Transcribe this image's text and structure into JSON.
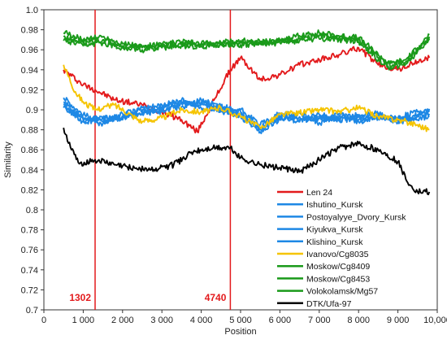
{
  "chart_data": {
    "type": "line",
    "xlabel": "Position",
    "ylabel": "Similarity",
    "xlim": [
      0,
      10000
    ],
    "ylim": [
      0.7,
      1.0
    ],
    "x_ticks": [
      0,
      1000,
      2000,
      3000,
      4000,
      5000,
      6000,
      7000,
      8000,
      9000,
      10000
    ],
    "x_tick_labels": [
      "0",
      "1 000",
      "2 000",
      "3 000",
      "4 000",
      "5 000",
      "6 000",
      "7 000",
      "8 000",
      "9 000",
      "10,000"
    ],
    "y_ticks": [
      0.7,
      0.72,
      0.74,
      0.76,
      0.78,
      0.8,
      0.82,
      0.84,
      0.86,
      0.88,
      0.9,
      0.92,
      0.94,
      0.96,
      0.98,
      1.0
    ],
    "y_tick_labels": [
      "0.7",
      "0.72",
      "0.74",
      "0.76",
      "0.78",
      "0.8",
      "0.82",
      "0.84",
      "0.86",
      "0.88",
      "0.9",
      "0.92",
      "0.94",
      "0.96",
      "0.98",
      "1.0"
    ],
    "grid": false,
    "legend_position": "bottom-right",
    "vertical_markers": [
      {
        "x": 1302,
        "label": "1302",
        "color": "#e31a1c"
      },
      {
        "x": 4740,
        "label": "4740",
        "color": "#e31a1c"
      }
    ],
    "series": [
      {
        "name": "Len 24",
        "color": "#e31a1c",
        "x": [
          500,
          1000,
          1302,
          1800,
          2500,
          3000,
          3500,
          3900,
          4400,
          4740,
          5000,
          5500,
          6000,
          6500,
          7000,
          7500,
          8000,
          8500,
          9000,
          9500,
          9800
        ],
        "y": [
          0.94,
          0.925,
          0.92,
          0.91,
          0.905,
          0.898,
          0.89,
          0.878,
          0.915,
          0.94,
          0.952,
          0.93,
          0.935,
          0.945,
          0.95,
          0.955,
          0.962,
          0.945,
          0.94,
          0.948,
          0.952
        ]
      },
      {
        "name": "Ishutino_Kursk",
        "color": "#1e88e5",
        "x": [
          500,
          1000,
          1500,
          2000,
          2500,
          3000,
          3500,
          4000,
          4500,
          5000,
          5500,
          6000,
          6500,
          7000,
          7500,
          8000,
          8500,
          9000,
          9500,
          9800
        ],
        "y": [
          0.912,
          0.895,
          0.888,
          0.894,
          0.902,
          0.905,
          0.908,
          0.902,
          0.9,
          0.895,
          0.878,
          0.89,
          0.893,
          0.891,
          0.896,
          0.89,
          0.894,
          0.889,
          0.895,
          0.898
        ]
      },
      {
        "name": "Postoyalyye_Dvory_Kursk",
        "color": "#1e88e5",
        "x": [
          500,
          1000,
          1500,
          2000,
          2500,
          3000,
          3500,
          4000,
          4500,
          5000,
          5500,
          6000,
          6500,
          7000,
          7500,
          8000,
          8500,
          9000,
          9500,
          9800
        ],
        "y": [
          0.908,
          0.89,
          0.892,
          0.89,
          0.898,
          0.902,
          0.91,
          0.905,
          0.904,
          0.898,
          0.882,
          0.894,
          0.897,
          0.887,
          0.893,
          0.893,
          0.891,
          0.892,
          0.898,
          0.901
        ]
      },
      {
        "name": "Kiyukva_Kursk",
        "color": "#1e88e5",
        "x": [
          500,
          1000,
          1500,
          2000,
          2500,
          3000,
          3500,
          4000,
          4500,
          5000,
          5500,
          6000,
          6500,
          7000,
          7500,
          8000,
          8500,
          9000,
          9500,
          9800
        ],
        "y": [
          0.905,
          0.892,
          0.886,
          0.896,
          0.9,
          0.898,
          0.906,
          0.908,
          0.898,
          0.9,
          0.885,
          0.896,
          0.89,
          0.893,
          0.889,
          0.895,
          0.896,
          0.887,
          0.893,
          0.896
        ]
      },
      {
        "name": "Klishino_Kursk",
        "color": "#1e88e5",
        "x": [
          500,
          1000,
          1500,
          2000,
          2500,
          3000,
          3500,
          4000,
          4500,
          5000,
          5500,
          6000,
          6500,
          7000,
          7500,
          8000,
          8500,
          9000,
          9500,
          9800
        ],
        "y": [
          0.902,
          0.888,
          0.891,
          0.893,
          0.896,
          0.9,
          0.903,
          0.91,
          0.902,
          0.893,
          0.88,
          0.892,
          0.888,
          0.895,
          0.891,
          0.888,
          0.893,
          0.891,
          0.89,
          0.894
        ]
      },
      {
        "name": "Ivanovo/Cg8035",
        "color": "#f5c400",
        "x": [
          500,
          800,
          1000,
          1302,
          1800,
          2500,
          3000,
          3500,
          4000,
          4500,
          5000,
          5500,
          6000,
          6500,
          7000,
          7500,
          8000,
          8500,
          9000,
          9500,
          9800
        ],
        "y": [
          0.945,
          0.918,
          0.908,
          0.9,
          0.905,
          0.888,
          0.892,
          0.9,
          0.898,
          0.902,
          0.893,
          0.882,
          0.895,
          0.897,
          0.9,
          0.898,
          0.902,
          0.893,
          0.89,
          0.885,
          0.88
        ]
      },
      {
        "name": "Moskow/Cg8409",
        "color": "#1a9a1a",
        "x": [
          500,
          1000,
          1500,
          2000,
          2500,
          3000,
          3500,
          4000,
          4500,
          5000,
          5500,
          6000,
          6500,
          7000,
          7500,
          8000,
          8500,
          8800,
          9200,
          9600,
          9800
        ],
        "y": [
          0.977,
          0.97,
          0.973,
          0.966,
          0.963,
          0.965,
          0.968,
          0.966,
          0.967,
          0.969,
          0.968,
          0.97,
          0.974,
          0.977,
          0.974,
          0.972,
          0.955,
          0.946,
          0.95,
          0.966,
          0.975
        ]
      },
      {
        "name": "Moskow/Cg8453",
        "color": "#1a9a1a",
        "x": [
          500,
          1000,
          1500,
          2000,
          2500,
          3000,
          3500,
          4000,
          4500,
          5000,
          5500,
          6000,
          6500,
          7000,
          7500,
          8000,
          8500,
          8800,
          9200,
          9600,
          9800
        ],
        "y": [
          0.973,
          0.967,
          0.97,
          0.964,
          0.962,
          0.963,
          0.966,
          0.965,
          0.965,
          0.967,
          0.967,
          0.968,
          0.971,
          0.974,
          0.972,
          0.97,
          0.952,
          0.944,
          0.948,
          0.964,
          0.973
        ]
      },
      {
        "name": "Volokolamsk/Mg57",
        "color": "#1a9a1a",
        "x": [
          500,
          1000,
          1500,
          2000,
          2500,
          3000,
          3500,
          4000,
          4500,
          5000,
          5500,
          6000,
          6500,
          7000,
          7500,
          8000,
          8500,
          8800,
          9200,
          9600,
          9800
        ],
        "y": [
          0.969,
          0.964,
          0.967,
          0.962,
          0.96,
          0.962,
          0.964,
          0.963,
          0.966,
          0.965,
          0.966,
          0.967,
          0.969,
          0.971,
          0.97,
          0.968,
          0.95,
          0.942,
          0.946,
          0.962,
          0.971
        ]
      },
      {
        "name": "DTK/Ufa-97",
        "color": "#000000",
        "x": [
          500,
          700,
          900,
          1302,
          1800,
          2300,
          2800,
          3300,
          3800,
          4300,
          4740,
          5000,
          5500,
          6000,
          6500,
          7000,
          7500,
          8000,
          8500,
          9000,
          9300,
          9500,
          9800
        ],
        "y": [
          0.882,
          0.86,
          0.846,
          0.85,
          0.845,
          0.842,
          0.84,
          0.845,
          0.858,
          0.862,
          0.862,
          0.852,
          0.845,
          0.842,
          0.838,
          0.85,
          0.862,
          0.866,
          0.86,
          0.848,
          0.825,
          0.818,
          0.818
        ]
      }
    ]
  }
}
